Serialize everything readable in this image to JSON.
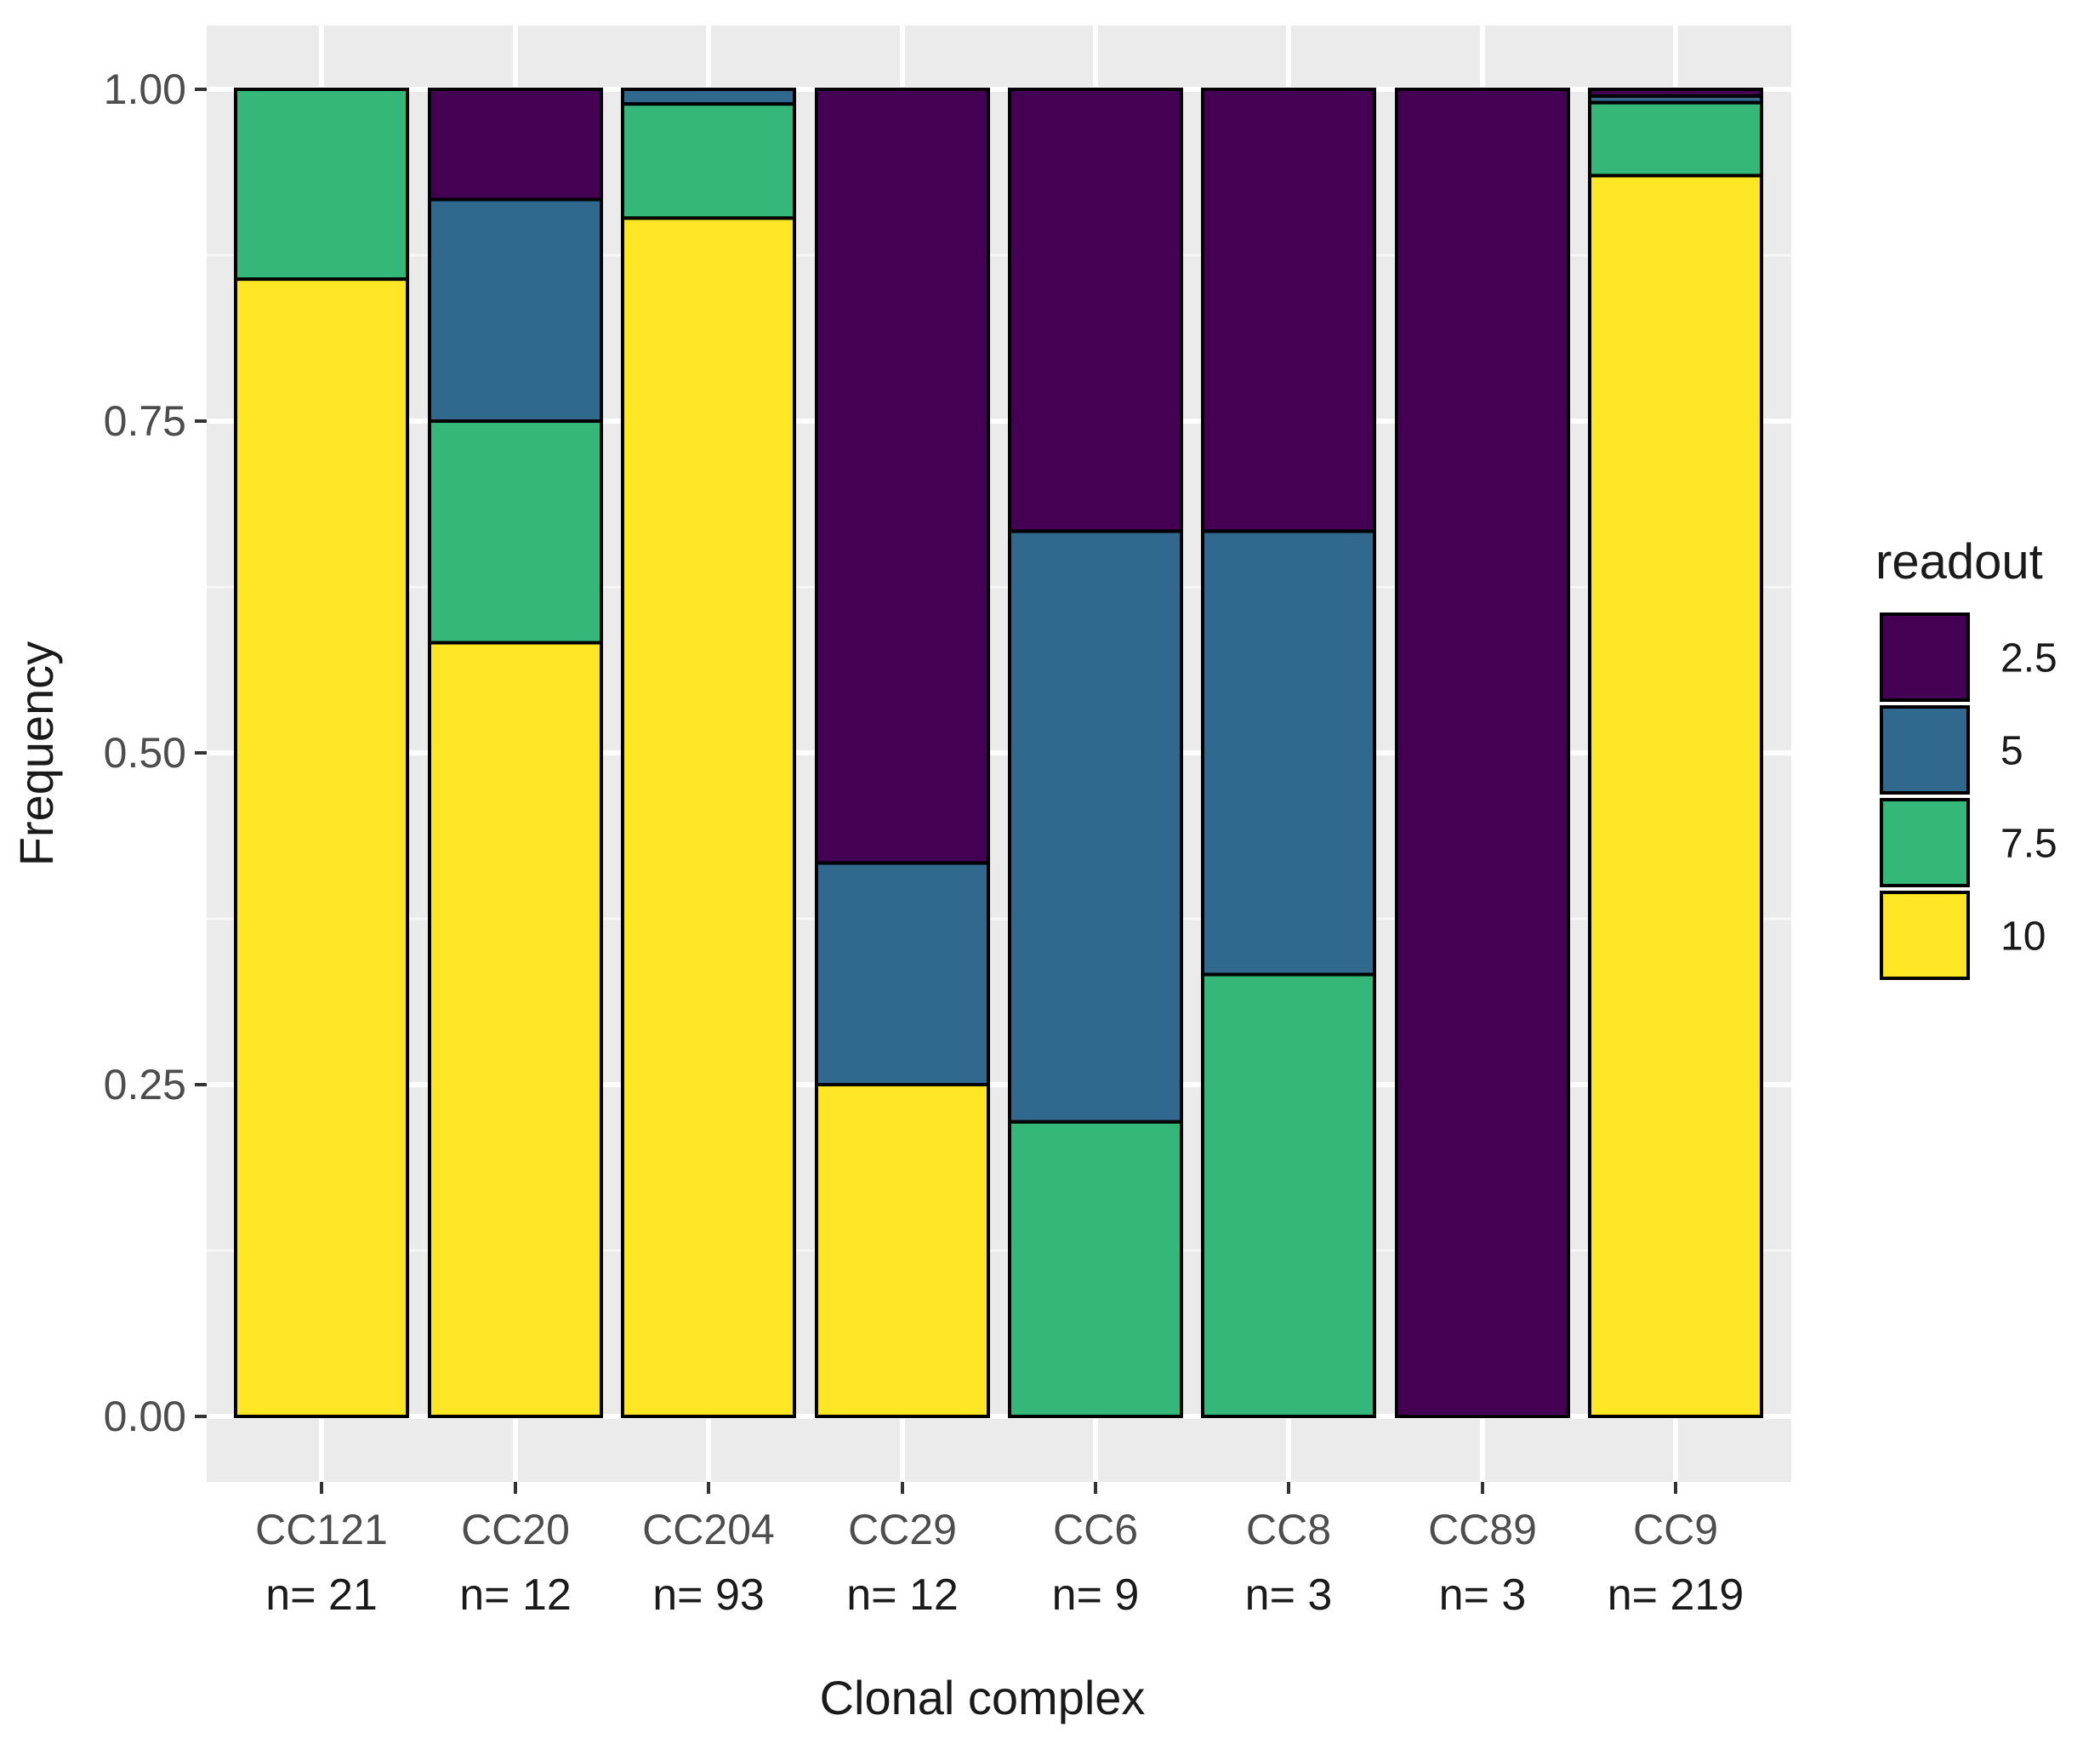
{
  "chart_data": {
    "type": "bar",
    "stacked": true,
    "title": "",
    "xlabel": "Clonal complex",
    "ylabel": "Frequency",
    "ylim": [
      0,
      1
    ],
    "yticks": [
      0,
      0.25,
      0.5,
      0.75,
      1
    ],
    "ytick_labels": [
      "0.00",
      "0.25",
      "0.50",
      "0.75",
      "1.00"
    ],
    "categories": [
      "CC121",
      "CC20",
      "CC204",
      "CC29",
      "CC6",
      "CC8",
      "CC89",
      "CC9"
    ],
    "sample_sizes": [
      "n= 21",
      "n= 12",
      "n= 93",
      "n= 12",
      "n= 9",
      "n= 3",
      "n= 3",
      "n= 219"
    ],
    "legend": {
      "title": "readout",
      "position": "right"
    },
    "series": [
      {
        "name": "2.5",
        "color": "#440154",
        "values": [
          0.0,
          0.083,
          0.0,
          0.583,
          0.333,
          0.333,
          1.0,
          0.005
        ]
      },
      {
        "name": "5",
        "color": "#31688e",
        "values": [
          0.0,
          0.167,
          0.011,
          0.167,
          0.445,
          0.334,
          0.0,
          0.005
        ]
      },
      {
        "name": "7.5",
        "color": "#35b779",
        "values": [
          0.143,
          0.167,
          0.086,
          0.0,
          0.222,
          0.333,
          0.0,
          0.055
        ]
      },
      {
        "name": "10",
        "color": "#fde725",
        "values": [
          0.857,
          0.583,
          0.903,
          0.25,
          0.0,
          0.0,
          0.0,
          0.935
        ]
      }
    ],
    "stack_order_bottom_to_top": [
      "10",
      "7.5",
      "5",
      "2.5"
    ],
    "panel_background": "#ebebeb",
    "grid": true
  }
}
